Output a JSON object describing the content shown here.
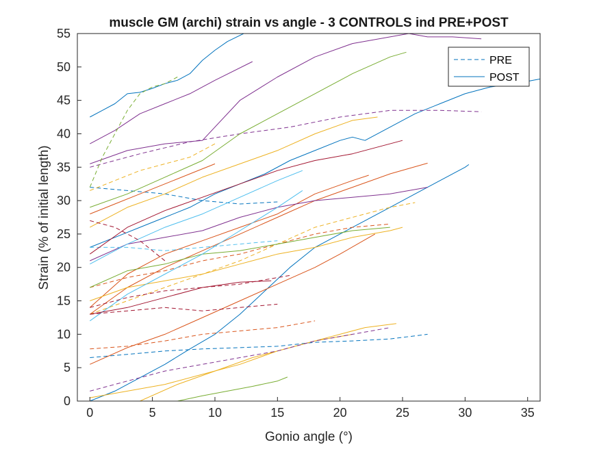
{
  "chart_data": {
    "type": "line",
    "title": "muscle GM (archi) strain vs angle - 3 CONTROLS ind PRE+POST",
    "xlabel": "Gonio angle (°)",
    "ylabel": "Strain (% of initial length)",
    "xlim": [
      -1,
      36
    ],
    "ylim": [
      0,
      55
    ],
    "xticks": [
      "0",
      "5",
      "10",
      "15",
      "20",
      "25",
      "30",
      "35"
    ],
    "yticks": [
      "0",
      "5",
      "10",
      "15",
      "20",
      "25",
      "30",
      "35",
      "40",
      "45",
      "50",
      "55"
    ],
    "grid": false,
    "legend": {
      "position": "top-right",
      "entries": [
        {
          "label": "PRE",
          "style": "dashed"
        },
        {
          "label": "POST",
          "style": "solid"
        }
      ]
    },
    "series": [
      {
        "color": "#0072BD",
        "style": "solid",
        "x": [
          0,
          2,
          4,
          6,
          8,
          10,
          12,
          14,
          16,
          18,
          20,
          22,
          24,
          26,
          28,
          30,
          30.3
        ],
        "y": [
          0,
          1.5,
          3.5,
          5.5,
          7.8,
          10,
          13,
          16.5,
          20,
          23,
          25,
          27,
          29,
          31,
          33,
          35,
          35.4
        ]
      },
      {
        "color": "#0072BD",
        "style": "solid",
        "x": [
          0,
          2,
          4,
          6,
          8,
          10,
          12,
          14,
          16,
          18,
          20,
          21,
          22,
          24,
          26,
          28,
          30,
          32,
          34,
          36
        ],
        "y": [
          23,
          24.5,
          26,
          27.5,
          29,
          31,
          32.5,
          34,
          36,
          37.5,
          39,
          39.5,
          39,
          41,
          43,
          44.5,
          46,
          47,
          47.5,
          48.2
        ]
      },
      {
        "color": "#0072BD",
        "style": "solid",
        "x": [
          0,
          1,
          2,
          3,
          4,
          5,
          6,
          7,
          8,
          9,
          10,
          11,
          12.3
        ],
        "y": [
          42.5,
          43.5,
          44.5,
          46,
          46.2,
          46.8,
          47.5,
          48,
          49,
          51,
          52.5,
          53.8,
          55
        ]
      },
      {
        "color": "#0072BD",
        "style": "dashed",
        "x": [
          0,
          3,
          6,
          9,
          12,
          15,
          18,
          21,
          24,
          27
        ],
        "y": [
          6.5,
          7,
          7.5,
          7.8,
          8,
          8.2,
          8.8,
          9,
          9.3,
          10
        ]
      },
      {
        "color": "#0072BD",
        "style": "dashed",
        "x": [
          0,
          3,
          6,
          9,
          12,
          15
        ],
        "y": [
          32,
          31.5,
          31,
          30,
          29.5,
          29.8
        ]
      },
      {
        "color": "#D95319",
        "style": "solid",
        "x": [
          0,
          3,
          6,
          9,
          12,
          15,
          18,
          21,
          24,
          27
        ],
        "y": [
          13,
          17,
          20,
          22.5,
          25,
          27.5,
          30,
          32,
          34,
          35.6
        ]
      },
      {
        "color": "#D95319",
        "style": "solid",
        "x": [
          0,
          3,
          6,
          9,
          12,
          15,
          18,
          20,
          22.8
        ],
        "y": [
          5.5,
          8,
          10,
          12.5,
          15,
          17.5,
          20,
          22,
          25
        ]
      },
      {
        "color": "#D95319",
        "style": "solid",
        "x": [
          0,
          3,
          6,
          9,
          12,
          15,
          18,
          21,
          22.3
        ],
        "y": [
          14,
          19,
          22,
          24,
          26,
          28,
          31,
          33,
          33.8
        ]
      },
      {
        "color": "#D95319",
        "style": "solid",
        "x": [
          0,
          2,
          4,
          6,
          8,
          10
        ],
        "y": [
          28,
          29.5,
          31,
          32.5,
          34,
          35.5
        ]
      },
      {
        "color": "#D95319",
        "style": "dashed",
        "x": [
          0,
          3,
          6,
          9,
          12,
          15,
          18
        ],
        "y": [
          7.8,
          8.2,
          9,
          10,
          10.5,
          11,
          12
        ]
      },
      {
        "color": "#D95319",
        "style": "dashed",
        "x": [
          0,
          3,
          6,
          9,
          12,
          15,
          18,
          21,
          24
        ],
        "y": [
          17,
          18.5,
          19.5,
          21,
          22,
          23.5,
          25,
          26,
          26.5
        ]
      },
      {
        "color": "#EDB120",
        "style": "solid",
        "x": [
          0,
          3,
          6,
          9,
          12,
          15,
          18,
          21,
          23
        ],
        "y": [
          26,
          29,
          31,
          33.5,
          35.5,
          37.5,
          40,
          42,
          42.5
        ]
      },
      {
        "color": "#EDB120",
        "style": "solid",
        "x": [
          0,
          3,
          6,
          9,
          12,
          15,
          18,
          21,
          24,
          25
        ],
        "y": [
          15,
          17,
          18,
          19,
          20.5,
          22,
          23,
          24.5,
          25.5,
          26
        ]
      },
      {
        "color": "#EDB120",
        "style": "solid",
        "x": [
          4,
          7,
          10,
          13,
          16,
          19,
          22,
          24.5
        ],
        "y": [
          0,
          2.5,
          4.5,
          6.5,
          8,
          9.5,
          11,
          11.6
        ]
      },
      {
        "color": "#EDB120",
        "style": "solid",
        "x": [
          0,
          3,
          6,
          9,
          12,
          15,
          18,
          21
        ],
        "y": [
          0.5,
          1.5,
          2.5,
          4,
          5.5,
          7.5,
          9,
          10
        ]
      },
      {
        "color": "#EDB120",
        "style": "dashed",
        "x": [
          0,
          3,
          6,
          9,
          12,
          15,
          18,
          21,
          24,
          26
        ],
        "y": [
          13,
          15,
          17,
          19,
          21,
          23.5,
          26,
          27.5,
          29,
          29.7
        ]
      },
      {
        "color": "#EDB120",
        "style": "dashed",
        "x": [
          0,
          2,
          4,
          6,
          8,
          10
        ],
        "y": [
          31.5,
          33,
          34.5,
          35.5,
          36.5,
          38.5
        ]
      },
      {
        "color": "#7E2F8E",
        "style": "solid",
        "x": [
          0,
          2,
          4,
          6,
          8,
          10,
          13
        ],
        "y": [
          38.5,
          40.5,
          43,
          44.5,
          46,
          48,
          50.8
        ]
      },
      {
        "color": "#7E2F8E",
        "style": "solid",
        "x": [
          0,
          3,
          6,
          9,
          12,
          15,
          18,
          21,
          24,
          25.5,
          27,
          29,
          31.3
        ],
        "y": [
          35.5,
          37.5,
          38.5,
          39,
          45,
          48.5,
          51.5,
          53.5,
          54.5,
          55,
          54.5,
          54.5,
          54.2
        ]
      },
      {
        "color": "#7E2F8E",
        "style": "solid",
        "x": [
          0,
          3,
          6,
          9,
          12,
          15,
          18,
          21,
          24,
          27
        ],
        "y": [
          21,
          23.5,
          24.5,
          25.5,
          27.5,
          29,
          30,
          30.5,
          31,
          32
        ]
      },
      {
        "color": "#7E2F8E",
        "style": "dashed",
        "x": [
          0,
          4,
          8,
          12,
          16,
          20,
          24,
          28,
          31.3
        ],
        "y": [
          35,
          37,
          38.8,
          40,
          41,
          42.5,
          43.5,
          43.5,
          43.3
        ]
      },
      {
        "color": "#7E2F8E",
        "style": "dashed",
        "x": [
          0,
          3,
          6,
          9,
          12,
          15,
          18,
          21,
          24
        ],
        "y": [
          1.5,
          3,
          4.5,
          5.5,
          6.5,
          7.5,
          9,
          10,
          11
        ]
      },
      {
        "color": "#77AC30",
        "style": "solid",
        "x": [
          0,
          3,
          6,
          9,
          12,
          15,
          18,
          21,
          24,
          25.3
        ],
        "y": [
          29,
          31,
          33.5,
          36,
          40,
          43,
          46,
          49,
          51.5,
          52.2
        ]
      },
      {
        "color": "#77AC30",
        "style": "solid",
        "x": [
          0,
          3,
          6,
          9,
          12,
          15,
          18,
          21,
          24
        ],
        "y": [
          17,
          19.5,
          20.5,
          22,
          22.5,
          23.5,
          24.5,
          25.5,
          26
        ]
      },
      {
        "color": "#77AC30",
        "style": "solid",
        "x": [
          7,
          9,
          11,
          13,
          15,
          15.8
        ],
        "y": [
          0,
          0.8,
          1.5,
          2.2,
          3,
          3.6
        ]
      },
      {
        "color": "#77AC30",
        "style": "dashed",
        "x": [
          0,
          1,
          2,
          3,
          4,
          5,
          6,
          7
        ],
        "y": [
          32,
          36.5,
          40,
          43.5,
          46,
          47,
          47.5,
          48.5
        ]
      },
      {
        "color": "#4DBEEE",
        "style": "solid",
        "x": [
          0,
          3,
          6,
          9,
          12,
          15,
          17
        ],
        "y": [
          12,
          16,
          19,
          22,
          25.5,
          29,
          31.5
        ]
      },
      {
        "color": "#4DBEEE",
        "style": "solid",
        "x": [
          0,
          3,
          6,
          9,
          12,
          15,
          17
        ],
        "y": [
          20.5,
          23.5,
          26,
          28,
          30.5,
          33,
          34.5
        ]
      },
      {
        "color": "#4DBEEE",
        "style": "dashed",
        "x": [
          0,
          3,
          6,
          9,
          12,
          15
        ],
        "y": [
          23,
          23,
          22.5,
          23,
          23.5,
          24
        ]
      },
      {
        "color": "#A2142F",
        "style": "solid",
        "x": [
          0,
          3,
          6,
          9,
          12,
          15,
          18,
          21,
          25
        ],
        "y": [
          22,
          26,
          28.5,
          30.5,
          32.5,
          34.5,
          36,
          37,
          39
        ]
      },
      {
        "color": "#A2142F",
        "style": "solid",
        "x": [
          0,
          3,
          6,
          9,
          12,
          14.5
        ],
        "y": [
          13,
          14,
          15.5,
          17,
          17.8,
          18
        ]
      },
      {
        "color": "#A2142F",
        "style": "dashed",
        "x": [
          0,
          3,
          6,
          9,
          12,
          16
        ],
        "y": [
          14,
          15.5,
          16.5,
          17,
          17.5,
          18.8
        ]
      },
      {
        "color": "#A2142F",
        "style": "dashed",
        "x": [
          0,
          3,
          6,
          9,
          12,
          15
        ],
        "y": [
          13,
          13.5,
          14,
          13.5,
          14,
          14.5
        ]
      },
      {
        "color": "#A2142F",
        "style": "dashed",
        "x": [
          0,
          2,
          4,
          6
        ],
        "y": [
          27,
          26,
          24,
          21
        ]
      }
    ]
  }
}
